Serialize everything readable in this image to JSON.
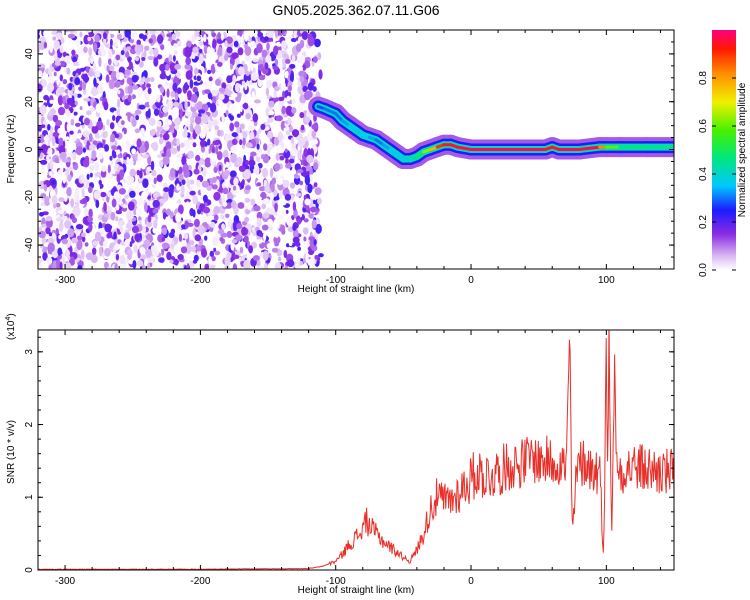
{
  "title": "GN05.2025.362.07.11.G06",
  "chart_data": [
    {
      "type": "heatmap",
      "xlabel": "Height of straight line (km)",
      "ylabel": "Frequency (Hz)",
      "xlim": [
        -320,
        150
      ],
      "ylim": [
        -50,
        50
      ],
      "x_ticks": [
        -300,
        -200,
        -100,
        0,
        100
      ],
      "y_ticks": [
        -40,
        -20,
        0,
        20,
        40
      ],
      "noise_region_x": [
        -320,
        -113
      ],
      "ridge": {
        "x": [
          -113,
          -108,
          -100,
          -95,
          -90,
          -85,
          -80,
          -75,
          -70,
          -65,
          -60,
          -55,
          -50,
          -45,
          -40,
          -35,
          -30,
          -25,
          -20,
          -15,
          -10,
          0,
          20,
          40,
          55,
          60,
          65,
          80,
          95,
          100,
          110,
          130,
          150
        ],
        "y": [
          18,
          17,
          15,
          12,
          10,
          8,
          6,
          5,
          4,
          2,
          0,
          -2,
          -4,
          -4,
          -3,
          -1,
          0,
          1,
          2,
          2,
          1,
          0,
          0,
          0,
          0,
          1,
          0,
          0,
          1,
          1,
          1,
          1,
          1
        ],
        "amplitude": [
          0.25,
          0.3,
          0.3,
          0.3,
          0.35,
          0.35,
          0.35,
          0.35,
          0.3,
          0.3,
          0.35,
          0.35,
          0.35,
          0.4,
          0.45,
          0.55,
          0.7,
          0.85,
          0.95,
          0.95,
          0.95,
          0.98,
          0.98,
          0.98,
          0.98,
          0.9,
          0.98,
          0.98,
          0.95,
          0.7,
          0.5,
          0.45,
          0.45
        ]
      },
      "colorbar": {
        "label": "Normalized spectral amplitude",
        "ticks": [
          "0.0",
          "0.2",
          "0.4",
          "0.6",
          "0.8"
        ],
        "range": [
          0,
          1
        ]
      }
    },
    {
      "type": "line",
      "xlabel": "Height of straight line (km)",
      "ylabel": "SNR (10 * v/v)",
      "y_scale_label": "(x10",
      "y_scale_exp": "4",
      "y_scale_close": ")",
      "xlim": [
        -320,
        150
      ],
      "ylim": [
        0,
        3.3
      ],
      "x_ticks": [
        -300,
        -200,
        -100,
        0,
        100
      ],
      "y_ticks": [
        0,
        1,
        2,
        3
      ],
      "color": "#e8302a",
      "series": [
        {
          "x": [
            -320,
            -200,
            -120,
            -110,
            -100,
            -95,
            -90,
            -85,
            -80,
            -78,
            -75,
            -70,
            -65,
            -60,
            -55,
            -50,
            -45,
            -40,
            -35,
            -32,
            -30,
            -25,
            -20,
            -15,
            -10,
            -5,
            0,
            5,
            10,
            15,
            20,
            25,
            30,
            35,
            40,
            45,
            50,
            55,
            60,
            65,
            70,
            72,
            73,
            74,
            75,
            78,
            80,
            85,
            90,
            95,
            98,
            100,
            101,
            102,
            104,
            106,
            108,
            110,
            115,
            120,
            130,
            140,
            150
          ],
          "y": [
            0.01,
            0.01,
            0.02,
            0.05,
            0.12,
            0.22,
            0.35,
            0.45,
            0.55,
            0.7,
            0.6,
            0.5,
            0.4,
            0.32,
            0.25,
            0.18,
            0.12,
            0.28,
            0.5,
            0.7,
            0.85,
            1.0,
            0.95,
            0.95,
            1.05,
            1.15,
            1.25,
            1.35,
            1.3,
            1.3,
            1.35,
            1.4,
            1.45,
            1.45,
            1.5,
            1.55,
            1.5,
            1.5,
            1.5,
            1.5,
            1.4,
            2.4,
            3.3,
            1.5,
            0.5,
            1.3,
            1.45,
            1.5,
            1.35,
            1.4,
            0.2,
            3.1,
            1.2,
            3.3,
            0.5,
            2.8,
            1.2,
            1.4,
            1.4,
            1.42,
            1.38,
            1.35,
            1.32
          ]
        }
      ]
    }
  ]
}
